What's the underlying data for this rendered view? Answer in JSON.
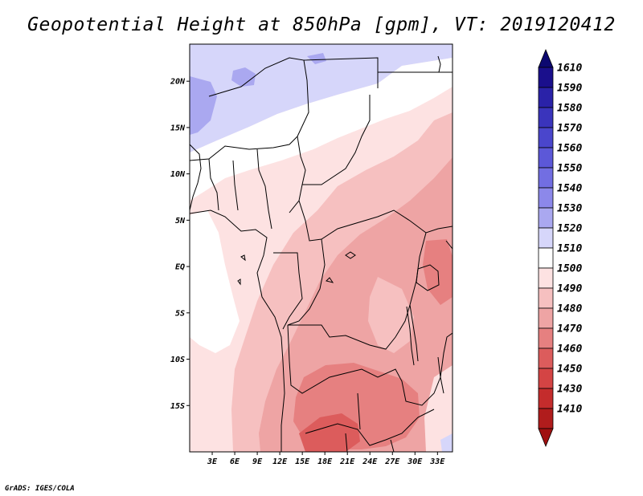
{
  "title": "Geopotential Height at 850hPa [gpm], VT: 2019120412",
  "footer": "GrADS: IGES/COLA",
  "map": {
    "lon_range": [
      0,
      35
    ],
    "lat_range": [
      -20,
      24
    ],
    "lat_ticks": [
      {
        "value": 20,
        "label": "20N"
      },
      {
        "value": 15,
        "label": "15N"
      },
      {
        "value": 10,
        "label": "10N"
      },
      {
        "value": 5,
        "label": "5N"
      },
      {
        "value": 0,
        "label": "EQ"
      },
      {
        "value": -5,
        "label": "5S"
      },
      {
        "value": -10,
        "label": "10S"
      },
      {
        "value": -15,
        "label": "15S"
      }
    ],
    "lon_ticks": [
      {
        "value": 3,
        "label": "3E"
      },
      {
        "value": 6,
        "label": "6E"
      },
      {
        "value": 9,
        "label": "9E"
      },
      {
        "value": 12,
        "label": "12E"
      },
      {
        "value": 15,
        "label": "15E"
      },
      {
        "value": 18,
        "label": "18E"
      },
      {
        "value": 21,
        "label": "21E"
      },
      {
        "value": 24,
        "label": "24E"
      },
      {
        "value": 27,
        "label": "27E"
      },
      {
        "value": 30,
        "label": "30E"
      },
      {
        "value": 33,
        "label": "33E"
      }
    ]
  },
  "colorbar": {
    "levels": [
      {
        "label": "1610",
        "color": "#1a0f8c"
      },
      {
        "label": "1590",
        "color": "#2a22a8"
      },
      {
        "label": "1580",
        "color": "#3a34bc"
      },
      {
        "label": "1570",
        "color": "#4a46cc"
      },
      {
        "label": "1560",
        "color": "#5c58d8"
      },
      {
        "label": "1550",
        "color": "#726ee2"
      },
      {
        "label": "1540",
        "color": "#8c88ea"
      },
      {
        "label": "1530",
        "color": "#aaa8f0"
      },
      {
        "label": "1520",
        "color": "#d6d6fa"
      },
      {
        "label": "1510",
        "color": "#ffffff"
      },
      {
        "label": "1500",
        "color": "#fde2e2"
      },
      {
        "label": "1490",
        "color": "#f6c0c0"
      },
      {
        "label": "1480",
        "color": "#eea4a4"
      },
      {
        "label": "1470",
        "color": "#e68080"
      },
      {
        "label": "1460",
        "color": "#dc5c5c"
      },
      {
        "label": "1450",
        "color": "#d44444"
      },
      {
        "label": "1430",
        "color": "#c42c2c"
      },
      {
        "label": "1410",
        "color": "#b01c1c"
      }
    ],
    "top_arrow_color": "#0c0870",
    "bottom_arrow_color": "#a01010"
  }
}
